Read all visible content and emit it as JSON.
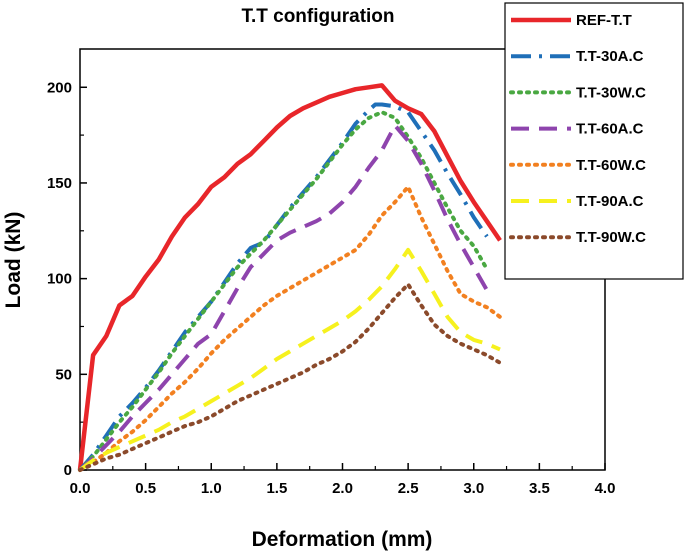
{
  "chart_data": {
    "type": "line",
    "title": "T.T configuration",
    "xlabel": "Deformation (mm)",
    "ylabel": "Load (kN)",
    "xlim": [
      0.0,
      4.0
    ],
    "ylim": [
      0,
      220
    ],
    "xticks": [
      "0.0",
      "0.5",
      "1.0",
      "1.5",
      "2.0",
      "2.5",
      "3.0",
      "3.5",
      "4.0"
    ],
    "yticks": [
      "0",
      "50",
      "100",
      "150",
      "200"
    ],
    "legend_position": "top-right",
    "series": [
      {
        "name": "REF-T.T",
        "color": "#e8262a",
        "style": "solid",
        "x": [
          0,
          0.1,
          0.2,
          0.3,
          0.4,
          0.5,
          0.6,
          0.7,
          0.8,
          0.9,
          1.0,
          1.1,
          1.2,
          1.3,
          1.4,
          1.5,
          1.6,
          1.7,
          1.8,
          1.9,
          2.0,
          2.1,
          2.2,
          2.3,
          2.4,
          2.5,
          2.6,
          2.7,
          2.8,
          2.9,
          3.0,
          3.1,
          3.2
        ],
        "y": [
          0,
          60,
          70,
          86,
          91,
          101,
          110,
          122,
          132,
          139,
          148,
          153,
          160,
          165,
          172,
          179,
          185,
          189,
          192,
          195,
          197,
          199,
          200,
          201,
          193,
          189,
          186,
          177,
          164,
          151,
          140,
          130,
          120
        ]
      },
      {
        "name": "T.T-30A.C",
        "color": "#1f6fb8",
        "style": "dashdot",
        "x": [
          0,
          0.1,
          0.2,
          0.3,
          0.4,
          0.5,
          0.6,
          0.7,
          0.8,
          0.9,
          1.0,
          1.1,
          1.2,
          1.3,
          1.4,
          1.5,
          1.6,
          1.7,
          1.8,
          1.9,
          2.0,
          2.1,
          2.2,
          2.25,
          2.3,
          2.4,
          2.5,
          2.6,
          2.7,
          2.8,
          2.9,
          3.0,
          3.1
        ],
        "y": [
          0,
          8,
          18,
          28,
          35,
          43,
          52,
          62,
          72,
          80,
          88,
          98,
          108,
          116,
          119,
          128,
          137,
          145,
          153,
          162,
          171,
          181,
          188,
          191,
          191,
          190,
          187,
          177,
          167,
          155,
          144,
          132,
          122
        ]
      },
      {
        "name": "T.T-30W.C",
        "color": "#4aa842",
        "style": "dotted",
        "x": [
          0,
          0.1,
          0.2,
          0.3,
          0.4,
          0.5,
          0.6,
          0.7,
          0.8,
          0.9,
          1.0,
          1.1,
          1.2,
          1.3,
          1.4,
          1.5,
          1.6,
          1.7,
          1.8,
          1.9,
          2.0,
          2.1,
          2.2,
          2.3,
          2.4,
          2.5,
          2.6,
          2.7,
          2.8,
          2.9,
          3.0,
          3.1
        ],
        "y": [
          0,
          7,
          16,
          25,
          33,
          42,
          51,
          61,
          70,
          79,
          88,
          97,
          106,
          113,
          120,
          128,
          136,
          144,
          152,
          161,
          170,
          178,
          184,
          187,
          184,
          174,
          163,
          150,
          137,
          125,
          117,
          105
        ]
      },
      {
        "name": "T.T-60A.C",
        "color": "#8e44ad",
        "style": "dashed",
        "x": [
          0,
          0.1,
          0.2,
          0.3,
          0.4,
          0.5,
          0.6,
          0.7,
          0.8,
          0.9,
          1.0,
          1.1,
          1.2,
          1.3,
          1.4,
          1.5,
          1.6,
          1.7,
          1.8,
          1.9,
          2.0,
          2.1,
          2.2,
          2.3,
          2.4,
          2.5,
          2.6,
          2.7,
          2.8,
          2.9,
          3.0,
          3.1
        ],
        "y": [
          0,
          6,
          13,
          20,
          28,
          35,
          42,
          50,
          58,
          66,
          71,
          83,
          95,
          106,
          113,
          120,
          124,
          127,
          130,
          134,
          140,
          148,
          158,
          167,
          180,
          172,
          160,
          146,
          131,
          118,
          106,
          94
        ]
      },
      {
        "name": "T.T-60W.C",
        "color": "#f28020",
        "style": "dotted",
        "x": [
          0,
          0.1,
          0.2,
          0.3,
          0.4,
          0.5,
          0.6,
          0.7,
          0.8,
          0.9,
          1.0,
          1.1,
          1.2,
          1.3,
          1.4,
          1.5,
          1.6,
          1.7,
          1.8,
          1.9,
          2.0,
          2.1,
          2.2,
          2.3,
          2.4,
          2.5,
          2.6,
          2.7,
          2.8,
          2.9,
          3.0,
          3.1,
          3.2
        ],
        "y": [
          0,
          4,
          9,
          15,
          20,
          26,
          33,
          40,
          46,
          53,
          61,
          68,
          74,
          80,
          86,
          91,
          95,
          99,
          103,
          107,
          111,
          115,
          123,
          133,
          140,
          148,
          132,
          118,
          104,
          92,
          88,
          85,
          80
        ]
      },
      {
        "name": "T.T-90A.C",
        "color": "#f6f11e",
        "style": "dashed",
        "x": [
          0,
          0.1,
          0.2,
          0.3,
          0.4,
          0.5,
          0.6,
          0.7,
          0.8,
          0.9,
          1.0,
          1.1,
          1.2,
          1.3,
          1.4,
          1.5,
          1.6,
          1.7,
          1.8,
          1.9,
          2.0,
          2.1,
          2.2,
          2.3,
          2.4,
          2.5,
          2.6,
          2.7,
          2.8,
          2.9,
          3.0,
          3.1,
          3.2
        ],
        "y": [
          0,
          5,
          9,
          12,
          15,
          18,
          21,
          25,
          28,
          32,
          36,
          40,
          44,
          48,
          53,
          58,
          62,
          66,
          70,
          74,
          78,
          83,
          89,
          96,
          105,
          115,
          104,
          92,
          80,
          72,
          68,
          66,
          63
        ]
      },
      {
        "name": "T.T-90W.C",
        "color": "#8b4a2b",
        "style": "dotted",
        "x": [
          0,
          0.1,
          0.2,
          0.3,
          0.4,
          0.5,
          0.6,
          0.7,
          0.8,
          0.9,
          1.0,
          1.1,
          1.2,
          1.3,
          1.4,
          1.5,
          1.6,
          1.7,
          1.8,
          1.9,
          2.0,
          2.1,
          2.2,
          2.3,
          2.4,
          2.5,
          2.6,
          2.7,
          2.8,
          2.9,
          3.0,
          3.1,
          3.2
        ],
        "y": [
          0,
          3,
          6,
          8,
          11,
          14,
          17,
          20,
          23,
          25,
          28,
          32,
          36,
          39,
          42,
          45,
          48,
          51,
          55,
          58,
          62,
          67,
          74,
          82,
          90,
          97,
          86,
          76,
          70,
          66,
          63,
          60,
          56
        ]
      }
    ]
  }
}
